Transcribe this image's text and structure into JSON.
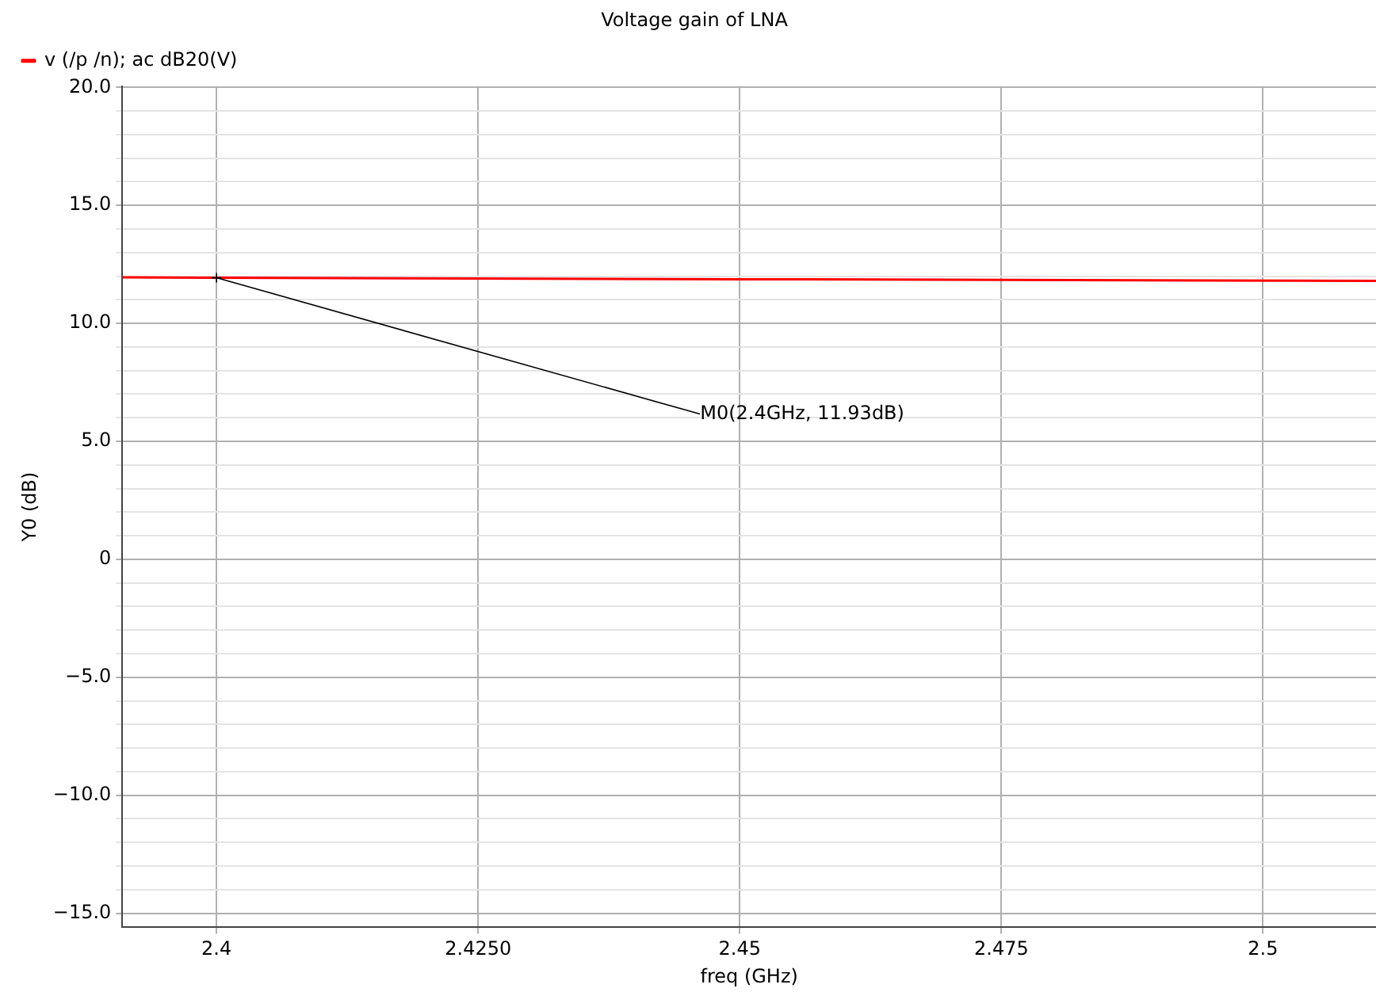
{
  "chart_data": {
    "type": "line",
    "title": "Voltage gain of LNA",
    "xlabel": "freq (GHz)",
    "ylabel": "Y0 (dB)",
    "x": [
      2.391,
      2.4,
      2.45,
      2.5108
    ],
    "series": [
      {
        "name": "v (/p /n); ac dB20(V)",
        "color": "#ff0000",
        "values": [
          11.95,
          11.93,
          11.87,
          11.8
        ]
      }
    ],
    "xlim": [
      2.391,
      2.5108
    ],
    "xticks": [
      {
        "value": 2.4,
        "label": "2.4"
      },
      {
        "value": 2.425,
        "label": "2.4250"
      },
      {
        "value": 2.45,
        "label": "2.45"
      },
      {
        "value": 2.475,
        "label": "2.475"
      },
      {
        "value": 2.5,
        "label": "2.5"
      }
    ],
    "ylim": [
      -15.6,
      20.05
    ],
    "yticks": [
      {
        "value": -15,
        "label": "−15.0"
      },
      {
        "value": -14,
        "label": null
      },
      {
        "value": -13,
        "label": null
      },
      {
        "value": -12,
        "label": null
      },
      {
        "value": -11,
        "label": null
      },
      {
        "value": -10,
        "label": "−10.0"
      },
      {
        "value": -9,
        "label": null
      },
      {
        "value": -8,
        "label": null
      },
      {
        "value": -7,
        "label": null
      },
      {
        "value": -6,
        "label": null
      },
      {
        "value": -5,
        "label": "−5.0"
      },
      {
        "value": -4,
        "label": null
      },
      {
        "value": -3,
        "label": null
      },
      {
        "value": -2,
        "label": null
      },
      {
        "value": -1,
        "label": null
      },
      {
        "value": 0,
        "label": "0"
      },
      {
        "value": 1,
        "label": null
      },
      {
        "value": 2,
        "label": null
      },
      {
        "value": 3,
        "label": null
      },
      {
        "value": 4,
        "label": null
      },
      {
        "value": 5,
        "label": "5.0"
      },
      {
        "value": 6,
        "label": null
      },
      {
        "value": 7,
        "label": null
      },
      {
        "value": 8,
        "label": null
      },
      {
        "value": 9,
        "label": null
      },
      {
        "value": 10,
        "label": "10.0"
      },
      {
        "value": 11,
        "label": null
      },
      {
        "value": 12,
        "label": null
      },
      {
        "value": 13,
        "label": null
      },
      {
        "value": 14,
        "label": null
      },
      {
        "value": 15,
        "label": "15.0"
      },
      {
        "value": 16,
        "label": null
      },
      {
        "value": 17,
        "label": null
      },
      {
        "value": 18,
        "label": null
      },
      {
        "value": 19,
        "label": null
      },
      {
        "value": 20,
        "label": "20.0"
      }
    ],
    "annotations": [
      {
        "text": "M0(2.4GHz, 11.93dB)",
        "x": 2.4,
        "y": 11.93
      }
    ],
    "grid": true,
    "legend": "top left",
    "marker": "none",
    "line_style": "solid"
  }
}
